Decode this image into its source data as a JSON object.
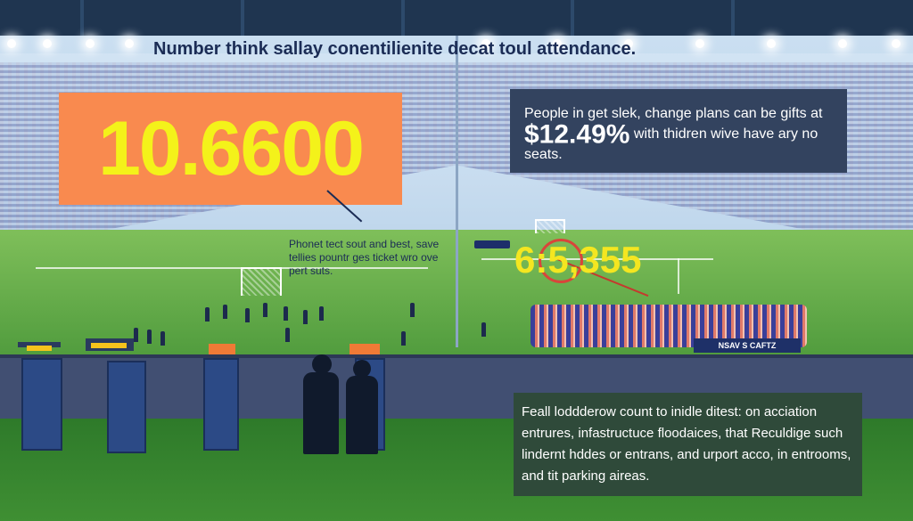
{
  "header": {
    "title": "Number think sallay conentilienite decat toul attendance."
  },
  "big_stat": {
    "value": "10.6600",
    "note": "Phonet tect sout and best, save tellies pountr ges ticket wro ove pert suts."
  },
  "price_panel": {
    "text_before": "People in get slek, change plans can be gifts at",
    "amount": "$12.49%",
    "text_after": "with thidren wive have ary no seats."
  },
  "field_stat": {
    "value": "6:5,355"
  },
  "stadium_sign": {
    "text": "NSAV S CAFTZ"
  },
  "bottom_panel": {
    "text": "Feall loddderow count to inidle ditest: on acciation entrures, infastructuce floodaices, that Reculdige such lindernt hddes or entrans, and urport acco, in entrooms, and tit parking aireas."
  },
  "colors": {
    "big_box_bg": "#f98a4f",
    "big_number": "#f4f21a",
    "price_box_bg": "#33435f",
    "bottom_box_bg": "#2f4a3a",
    "field_number": "#f4e620"
  }
}
